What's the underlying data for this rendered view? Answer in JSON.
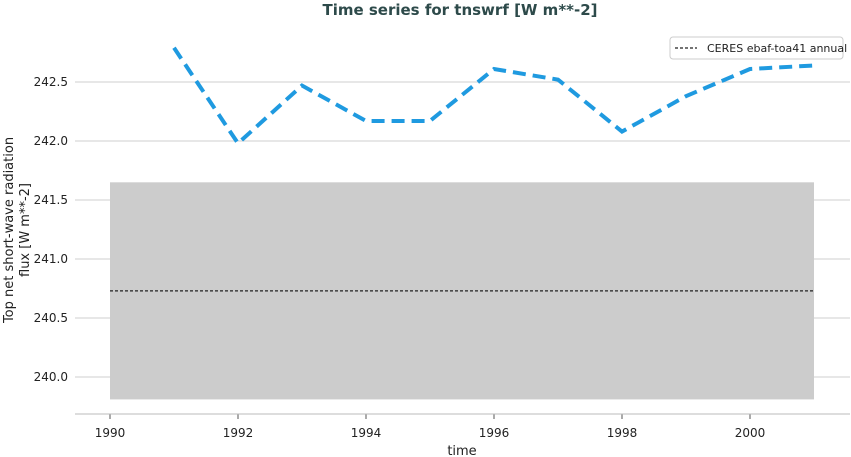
{
  "chart_data": {
    "type": "line",
    "title": "Time series for tnswrf [W m**-2]",
    "xlabel": "time",
    "ylabel": "Top net short-wave radiation flux [W m**-2]",
    "ylabel_lines": [
      "Top net short-wave radiation",
      "flux [W m**-2]"
    ],
    "xlim": [
      1989.45,
      2011.55
    ],
    "ylim": [
      239.7,
      243.05
    ],
    "x_ticks": [
      1990,
      1992,
      1994,
      1996,
      1998,
      2000
    ],
    "y_ticks": [
      "240.0",
      "240.5",
      "241.0",
      "241.5",
      "242.0",
      "242.5"
    ],
    "grid": "horizontal",
    "legend_position": "top-right",
    "series": [
      {
        "style": "dashed",
        "color": "#1f9ae0",
        "x": [
          1991,
          1992,
          1993,
          1994,
          1995,
          1996,
          1997,
          1998,
          1999,
          2000,
          2001
        ],
        "y": [
          242.79,
          241.98,
          242.47,
          242.17,
          242.17,
          242.61,
          242.52,
          242.08,
          242.38,
          242.61,
          242.64
        ]
      }
    ],
    "reference": {
      "name": "CERES ebaf-toa41 annual",
      "value": 240.73,
      "band": [
        239.81,
        241.65
      ],
      "x_range": [
        1990,
        2001
      ],
      "line_color": "#222222",
      "band_color": "#cccccc"
    }
  }
}
